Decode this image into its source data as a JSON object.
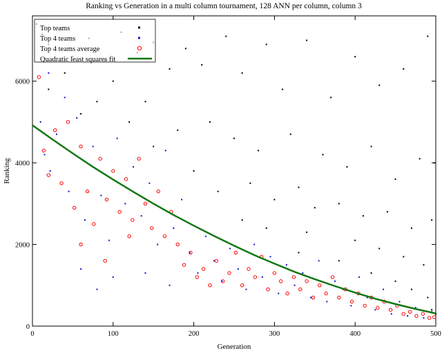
{
  "chart_data": {
    "type": "scatter",
    "title": "Ranking vs Generation in a multi column tournament, 128 ANN per column, column 3",
    "xlabel": "Generation",
    "ylabel": "Ranking",
    "xlim": [
      0,
      500
    ],
    "ylim": [
      0,
      7600
    ],
    "x_ticks": [
      0,
      100,
      200,
      300,
      400,
      500
    ],
    "y_ticks": [
      0,
      2000,
      4000,
      6000
    ],
    "grid": false,
    "legend_position": "top-left",
    "series": [
      {
        "name": "Top teams",
        "kind": "points",
        "color": "#000000",
        "marker": "small-square",
        "note": "dense cloud spanning full range",
        "points": [
          [
            5,
            7400
          ],
          [
            12,
            7150
          ],
          [
            20,
            6900
          ],
          [
            35,
            7300
          ],
          [
            50,
            6600
          ],
          [
            70,
            7050
          ],
          [
            90,
            6500
          ],
          [
            110,
            7200
          ],
          [
            130,
            6700
          ],
          [
            150,
            6950
          ],
          [
            170,
            6300
          ],
          [
            190,
            6800
          ],
          [
            210,
            6400
          ],
          [
            240,
            7100
          ],
          [
            260,
            6200
          ],
          [
            290,
            6900
          ],
          [
            310,
            5800
          ],
          [
            340,
            7000
          ],
          [
            370,
            5600
          ],
          [
            400,
            6600
          ],
          [
            430,
            5900
          ],
          [
            460,
            6300
          ],
          [
            490,
            7100
          ],
          [
            498,
            4000
          ],
          [
            20,
            5800
          ],
          [
            60,
            5200
          ],
          [
            100,
            6000
          ],
          [
            140,
            5500
          ],
          [
            180,
            4800
          ],
          [
            220,
            5000
          ],
          [
            250,
            4600
          ],
          [
            280,
            4300
          ],
          [
            320,
            4700
          ],
          [
            360,
            4200
          ],
          [
            390,
            3900
          ],
          [
            420,
            4400
          ],
          [
            450,
            3600
          ],
          [
            480,
            4100
          ],
          [
            200,
            3800
          ],
          [
            230,
            3300
          ],
          [
            270,
            3500
          ],
          [
            300,
            3100
          ],
          [
            330,
            3400
          ],
          [
            350,
            2900
          ],
          [
            380,
            3000
          ],
          [
            410,
            2700
          ],
          [
            440,
            2800
          ],
          [
            470,
            2400
          ],
          [
            495,
            2600
          ],
          [
            260,
            2600
          ],
          [
            290,
            2400
          ],
          [
            340,
            2300
          ],
          [
            400,
            2100
          ],
          [
            430,
            1900
          ],
          [
            460,
            1700
          ],
          [
            485,
            1500
          ],
          [
            330,
            1800
          ],
          [
            380,
            1600
          ],
          [
            420,
            1300
          ],
          [
            450,
            1100
          ],
          [
            470,
            900
          ],
          [
            490,
            700
          ],
          [
            495,
            400
          ],
          [
            500,
            300
          ],
          [
            150,
            4400
          ],
          [
            120,
            5000
          ],
          [
            80,
            5500
          ],
          [
            40,
            6200
          ]
        ]
      },
      {
        "name": "Top 4 teams",
        "kind": "points",
        "color": "#1111cc",
        "marker": "small-square",
        "points": [
          [
            10,
            5000
          ],
          [
            15,
            4200
          ],
          [
            22,
            3800
          ],
          [
            30,
            4700
          ],
          [
            45,
            3300
          ],
          [
            55,
            5100
          ],
          [
            65,
            2600
          ],
          [
            75,
            4400
          ],
          [
            85,
            3200
          ],
          [
            95,
            2100
          ],
          [
            105,
            4600
          ],
          [
            115,
            3000
          ],
          [
            125,
            3900
          ],
          [
            135,
            2700
          ],
          [
            145,
            3500
          ],
          [
            155,
            2000
          ],
          [
            165,
            4300
          ],
          [
            175,
            2400
          ],
          [
            185,
            3100
          ],
          [
            195,
            1800
          ],
          [
            205,
            1300
          ],
          [
            215,
            2200
          ],
          [
            225,
            1600
          ],
          [
            235,
            1100
          ],
          [
            245,
            1900
          ],
          [
            255,
            1400
          ],
          [
            265,
            900
          ],
          [
            275,
            2000
          ],
          [
            285,
            1200
          ],
          [
            295,
            1700
          ],
          [
            305,
            800
          ],
          [
            315,
            1500
          ],
          [
            325,
            1000
          ],
          [
            335,
            1300
          ],
          [
            345,
            700
          ],
          [
            355,
            1600
          ],
          [
            365,
            600
          ],
          [
            375,
            1100
          ],
          [
            385,
            900
          ],
          [
            395,
            500
          ],
          [
            405,
            1200
          ],
          [
            415,
            700
          ],
          [
            425,
            400
          ],
          [
            435,
            900
          ],
          [
            445,
            300
          ],
          [
            455,
            600
          ],
          [
            465,
            250
          ],
          [
            475,
            450
          ],
          [
            485,
            200
          ],
          [
            495,
            350
          ],
          [
            20,
            6200
          ],
          [
            40,
            5600
          ],
          [
            60,
            1400
          ],
          [
            80,
            900
          ],
          [
            100,
            1200
          ],
          [
            140,
            1300
          ],
          [
            170,
            1000
          ]
        ]
      },
      {
        "name": "Top 4 teams average",
        "kind": "points",
        "color": "#ff0000",
        "marker": "open-circle",
        "points": [
          [
            8,
            6100
          ],
          [
            14,
            4300
          ],
          [
            20,
            3700
          ],
          [
            28,
            4800
          ],
          [
            36,
            3500
          ],
          [
            44,
            5000
          ],
          [
            52,
            2900
          ],
          [
            60,
            4400
          ],
          [
            68,
            3300
          ],
          [
            76,
            2500
          ],
          [
            84,
            4100
          ],
          [
            92,
            3100
          ],
          [
            100,
            3800
          ],
          [
            108,
            2800
          ],
          [
            116,
            3600
          ],
          [
            124,
            2600
          ],
          [
            132,
            4100
          ],
          [
            140,
            3000
          ],
          [
            148,
            2400
          ],
          [
            156,
            3300
          ],
          [
            164,
            2200
          ],
          [
            172,
            2800
          ],
          [
            180,
            2000
          ],
          [
            188,
            1500
          ],
          [
            196,
            1800
          ],
          [
            204,
            1200
          ],
          [
            212,
            1400
          ],
          [
            220,
            1000
          ],
          [
            228,
            1600
          ],
          [
            236,
            1100
          ],
          [
            244,
            1300
          ],
          [
            252,
            1800
          ],
          [
            260,
            1000
          ],
          [
            268,
            1400
          ],
          [
            276,
            1200
          ],
          [
            284,
            1700
          ],
          [
            292,
            900
          ],
          [
            300,
            1300
          ],
          [
            308,
            1100
          ],
          [
            316,
            800
          ],
          [
            324,
            1200
          ],
          [
            332,
            900
          ],
          [
            340,
            1100
          ],
          [
            348,
            700
          ],
          [
            356,
            1000
          ],
          [
            364,
            800
          ],
          [
            372,
            1200
          ],
          [
            380,
            700
          ],
          [
            388,
            900
          ],
          [
            396,
            600
          ],
          [
            404,
            800
          ],
          [
            412,
            500
          ],
          [
            420,
            700
          ],
          [
            428,
            450
          ],
          [
            436,
            600
          ],
          [
            444,
            400
          ],
          [
            452,
            500
          ],
          [
            460,
            300
          ],
          [
            468,
            350
          ],
          [
            476,
            250
          ],
          [
            484,
            300
          ],
          [
            492,
            200
          ],
          [
            498,
            220
          ],
          [
            60,
            2000
          ],
          [
            90,
            1600
          ],
          [
            120,
            2200
          ]
        ]
      },
      {
        "name": "Quadratic least squares fit",
        "kind": "line",
        "color": "#117711",
        "points": [
          [
            0,
            4920
          ],
          [
            25,
            4570
          ],
          [
            50,
            4230
          ],
          [
            75,
            3900
          ],
          [
            100,
            3590
          ],
          [
            125,
            3290
          ],
          [
            150,
            3000
          ],
          [
            175,
            2720
          ],
          [
            200,
            2460
          ],
          [
            225,
            2210
          ],
          [
            250,
            1970
          ],
          [
            275,
            1740
          ],
          [
            300,
            1530
          ],
          [
            325,
            1330
          ],
          [
            350,
            1150
          ],
          [
            375,
            980
          ],
          [
            400,
            820
          ],
          [
            425,
            670
          ],
          [
            450,
            540
          ],
          [
            475,
            420
          ],
          [
            500,
            310
          ]
        ]
      }
    ]
  }
}
